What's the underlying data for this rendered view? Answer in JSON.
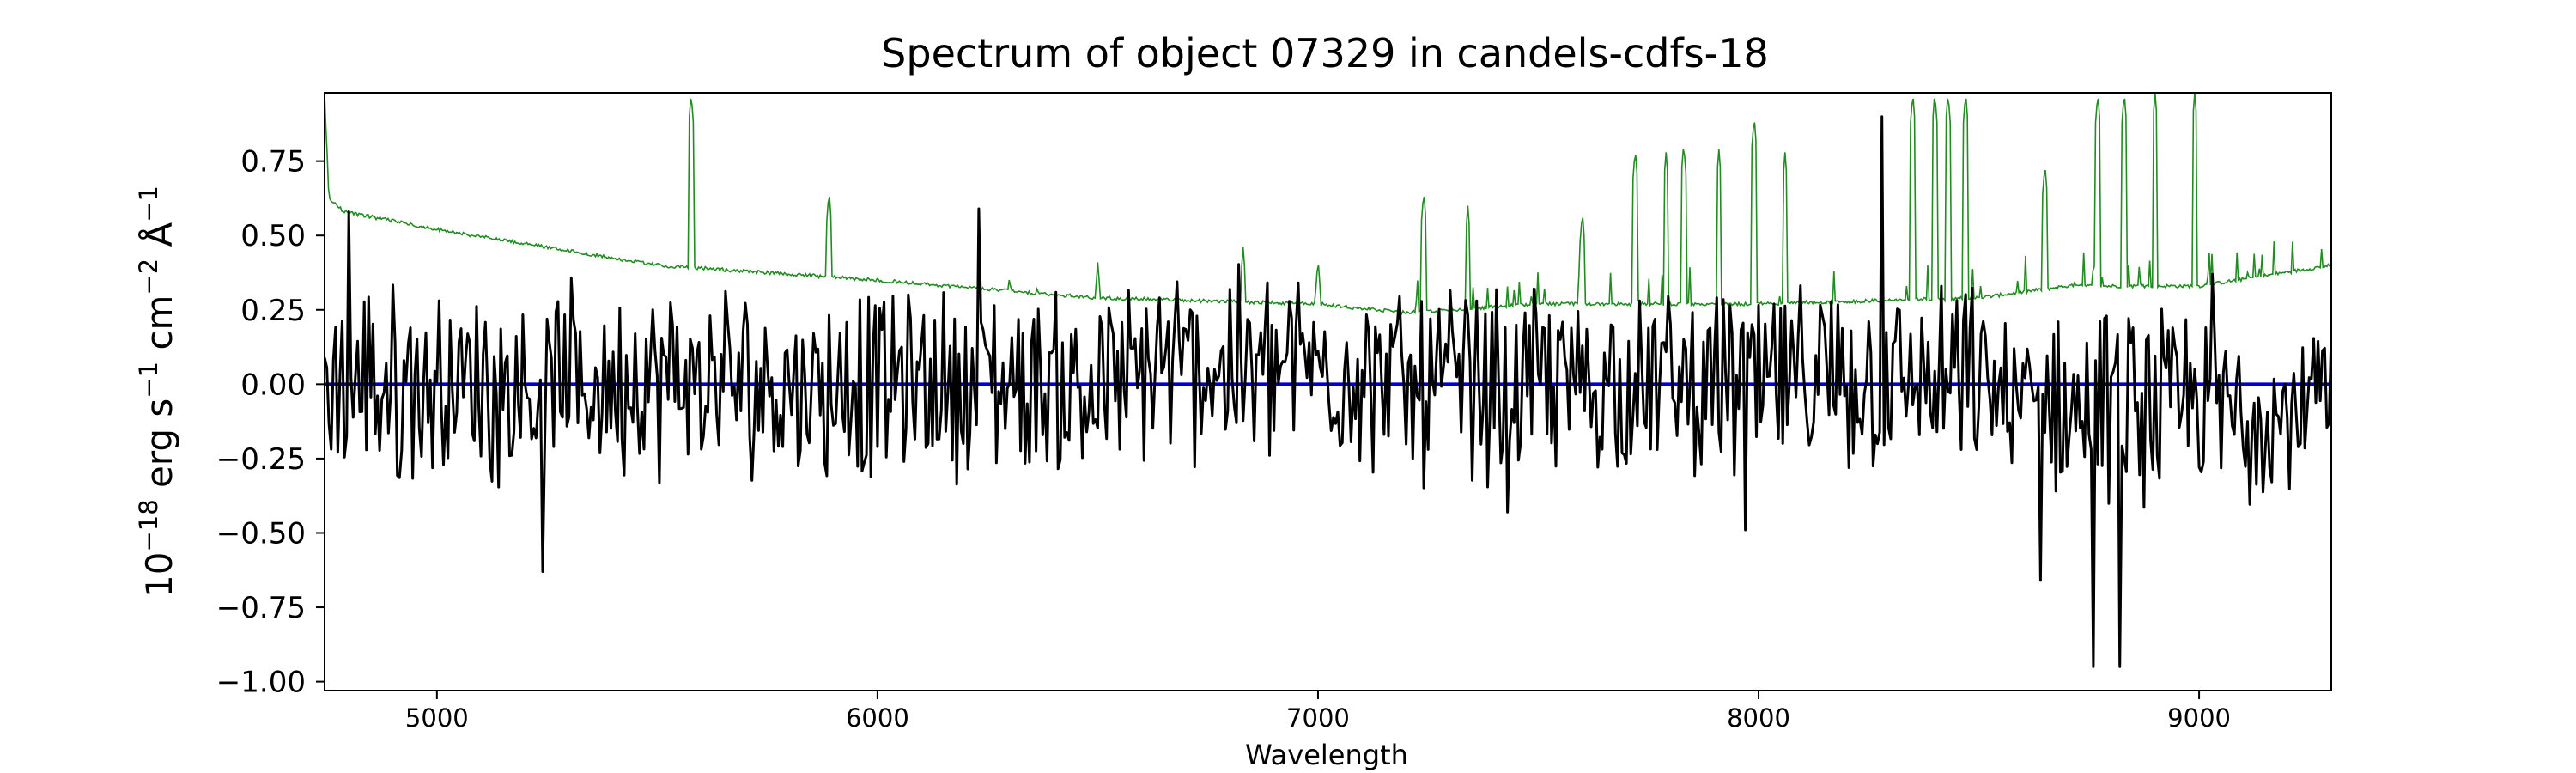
{
  "chart_data": {
    "type": "line",
    "title": "Spectrum of object 07329 in candels-cdfs-18",
    "xlabel": "Wavelength",
    "ylabel": {
      "base": "10",
      "exp1": "−18",
      "unit1": " erg s",
      "exp2": "−1",
      "unit2": " cm",
      "exp3": "−2",
      "unit3": " Å",
      "exp4": "−1"
    },
    "xlim": [
      4745,
      9300
    ],
    "ylim": [
      -1.03,
      0.98
    ],
    "xticks": [
      5000,
      6000,
      7000,
      8000,
      9000
    ],
    "xtick_labels": [
      "5000",
      "6000",
      "7000",
      "8000",
      "9000"
    ],
    "yticks": [
      -1.0,
      -0.75,
      -0.5,
      -0.25,
      0.0,
      0.25,
      0.5,
      0.75
    ],
    "ytick_labels": [
      "−1.00",
      "−0.75",
      "−0.50",
      "−0.25",
      "0.00",
      "0.25",
      "0.50",
      "0.75"
    ],
    "grid": false,
    "series": [
      {
        "role": "spectrum",
        "color": "#000000",
        "note": "noisy flux values sampled every 5 Å across 4745–9300, fluctuating mostly between −0.5 and 0.35, with peaks near 0.6 (4800, 6230), 0.9 (8280), 0.38 (9030) and dips to −0.95 (8760, 8820)",
        "x_start": 4745,
        "x_end": 9300,
        "x_step": 5,
        "features": [
          [
            4800,
            0.58
          ],
          [
            6230,
            0.59
          ],
          [
            8280,
            0.9
          ],
          [
            9030,
            0.37
          ],
          [
            5240,
            -0.63
          ],
          [
            7430,
            -0.43
          ],
          [
            7970,
            -0.49
          ],
          [
            8640,
            -0.66
          ],
          [
            8760,
            -0.95
          ],
          [
            8820,
            -0.95
          ]
        ]
      },
      {
        "role": "error",
        "color": "#228b22",
        "note": "error spectrum: ~0.58 at 4760 declining smoothly to ~0.27 near 7100, rising to ~0.4 near 9300, with sky-line spikes",
        "baseline": [
          [
            4745,
            0.98
          ],
          [
            4755,
            0.62
          ],
          [
            4790,
            0.58
          ],
          [
            5000,
            0.52
          ],
          [
            5500,
            0.4
          ],
          [
            6000,
            0.35
          ],
          [
            6500,
            0.29
          ],
          [
            7000,
            0.27
          ],
          [
            7200,
            0.24
          ],
          [
            7500,
            0.27
          ],
          [
            8000,
            0.27
          ],
          [
            8500,
            0.29
          ],
          [
            8700,
            0.33
          ],
          [
            9000,
            0.33
          ],
          [
            9300,
            0.4
          ]
        ],
        "spikes": [
          [
            5577,
            0.98
          ],
          [
            5190,
            0.49
          ],
          [
            5890,
            0.65
          ],
          [
            6300,
            0.37
          ],
          [
            6363,
            0.34
          ],
          [
            6500,
            0.41
          ],
          [
            6830,
            0.46
          ],
          [
            7000,
            0.42
          ],
          [
            7240,
            0.65
          ],
          [
            7340,
            0.6
          ],
          [
            7600,
            0.58
          ],
          [
            7720,
            0.79
          ],
          [
            7790,
            0.78
          ],
          [
            7830,
            0.81
          ],
          [
            7910,
            0.79
          ],
          [
            7990,
            0.9
          ],
          [
            8060,
            0.78
          ],
          [
            8350,
            0.98
          ],
          [
            8400,
            0.98
          ],
          [
            8430,
            0.98
          ],
          [
            8470,
            0.98
          ],
          [
            8650,
            0.74
          ],
          [
            8770,
            0.98
          ],
          [
            8830,
            0.98
          ],
          [
            8900,
            0.98
          ],
          [
            8990,
            0.98
          ],
          [
            9200,
            0.38
          ]
        ]
      },
      {
        "role": "zero-line",
        "color": "#0000cd",
        "x": [
          4745,
          9300
        ],
        "y": [
          0.0,
          0.0
        ]
      }
    ]
  }
}
